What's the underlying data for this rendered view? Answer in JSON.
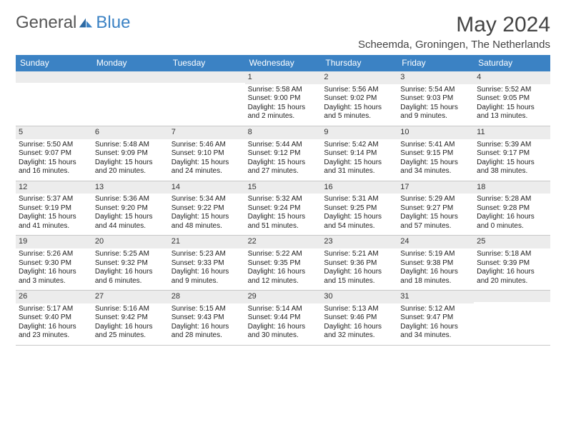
{
  "brand": {
    "part1": "General",
    "part2": "Blue"
  },
  "title": "May 2024",
  "location": "Scheemda, Groningen, The Netherlands",
  "colors": {
    "header_bg": "#3b82c4",
    "header_text": "#ffffff",
    "daynum_bg": "#ececec",
    "border": "#c8c8c8",
    "text": "#333333",
    "brand_gray": "#555555",
    "brand_blue": "#3b82c4",
    "page_bg": "#ffffff"
  },
  "typography": {
    "body_fontsize": 10,
    "daynum_fontsize": 11,
    "dow_fontsize": 12,
    "title_fontsize": 30,
    "location_fontsize": 15
  },
  "dow": [
    "Sunday",
    "Monday",
    "Tuesday",
    "Wednesday",
    "Thursday",
    "Friday",
    "Saturday"
  ],
  "weeks": [
    [
      {
        "n": "",
        "sr": "",
        "ss": "",
        "dl": ""
      },
      {
        "n": "",
        "sr": "",
        "ss": "",
        "dl": ""
      },
      {
        "n": "",
        "sr": "",
        "ss": "",
        "dl": ""
      },
      {
        "n": "1",
        "sr": "Sunrise: 5:58 AM",
        "ss": "Sunset: 9:00 PM",
        "dl": "Daylight: 15 hours and 2 minutes."
      },
      {
        "n": "2",
        "sr": "Sunrise: 5:56 AM",
        "ss": "Sunset: 9:02 PM",
        "dl": "Daylight: 15 hours and 5 minutes."
      },
      {
        "n": "3",
        "sr": "Sunrise: 5:54 AM",
        "ss": "Sunset: 9:03 PM",
        "dl": "Daylight: 15 hours and 9 minutes."
      },
      {
        "n": "4",
        "sr": "Sunrise: 5:52 AM",
        "ss": "Sunset: 9:05 PM",
        "dl": "Daylight: 15 hours and 13 minutes."
      }
    ],
    [
      {
        "n": "5",
        "sr": "Sunrise: 5:50 AM",
        "ss": "Sunset: 9:07 PM",
        "dl": "Daylight: 15 hours and 16 minutes."
      },
      {
        "n": "6",
        "sr": "Sunrise: 5:48 AM",
        "ss": "Sunset: 9:09 PM",
        "dl": "Daylight: 15 hours and 20 minutes."
      },
      {
        "n": "7",
        "sr": "Sunrise: 5:46 AM",
        "ss": "Sunset: 9:10 PM",
        "dl": "Daylight: 15 hours and 24 minutes."
      },
      {
        "n": "8",
        "sr": "Sunrise: 5:44 AM",
        "ss": "Sunset: 9:12 PM",
        "dl": "Daylight: 15 hours and 27 minutes."
      },
      {
        "n": "9",
        "sr": "Sunrise: 5:42 AM",
        "ss": "Sunset: 9:14 PM",
        "dl": "Daylight: 15 hours and 31 minutes."
      },
      {
        "n": "10",
        "sr": "Sunrise: 5:41 AM",
        "ss": "Sunset: 9:15 PM",
        "dl": "Daylight: 15 hours and 34 minutes."
      },
      {
        "n": "11",
        "sr": "Sunrise: 5:39 AM",
        "ss": "Sunset: 9:17 PM",
        "dl": "Daylight: 15 hours and 38 minutes."
      }
    ],
    [
      {
        "n": "12",
        "sr": "Sunrise: 5:37 AM",
        "ss": "Sunset: 9:19 PM",
        "dl": "Daylight: 15 hours and 41 minutes."
      },
      {
        "n": "13",
        "sr": "Sunrise: 5:36 AM",
        "ss": "Sunset: 9:20 PM",
        "dl": "Daylight: 15 hours and 44 minutes."
      },
      {
        "n": "14",
        "sr": "Sunrise: 5:34 AM",
        "ss": "Sunset: 9:22 PM",
        "dl": "Daylight: 15 hours and 48 minutes."
      },
      {
        "n": "15",
        "sr": "Sunrise: 5:32 AM",
        "ss": "Sunset: 9:24 PM",
        "dl": "Daylight: 15 hours and 51 minutes."
      },
      {
        "n": "16",
        "sr": "Sunrise: 5:31 AM",
        "ss": "Sunset: 9:25 PM",
        "dl": "Daylight: 15 hours and 54 minutes."
      },
      {
        "n": "17",
        "sr": "Sunrise: 5:29 AM",
        "ss": "Sunset: 9:27 PM",
        "dl": "Daylight: 15 hours and 57 minutes."
      },
      {
        "n": "18",
        "sr": "Sunrise: 5:28 AM",
        "ss": "Sunset: 9:28 PM",
        "dl": "Daylight: 16 hours and 0 minutes."
      }
    ],
    [
      {
        "n": "19",
        "sr": "Sunrise: 5:26 AM",
        "ss": "Sunset: 9:30 PM",
        "dl": "Daylight: 16 hours and 3 minutes."
      },
      {
        "n": "20",
        "sr": "Sunrise: 5:25 AM",
        "ss": "Sunset: 9:32 PM",
        "dl": "Daylight: 16 hours and 6 minutes."
      },
      {
        "n": "21",
        "sr": "Sunrise: 5:23 AM",
        "ss": "Sunset: 9:33 PM",
        "dl": "Daylight: 16 hours and 9 minutes."
      },
      {
        "n": "22",
        "sr": "Sunrise: 5:22 AM",
        "ss": "Sunset: 9:35 PM",
        "dl": "Daylight: 16 hours and 12 minutes."
      },
      {
        "n": "23",
        "sr": "Sunrise: 5:21 AM",
        "ss": "Sunset: 9:36 PM",
        "dl": "Daylight: 16 hours and 15 minutes."
      },
      {
        "n": "24",
        "sr": "Sunrise: 5:19 AM",
        "ss": "Sunset: 9:38 PM",
        "dl": "Daylight: 16 hours and 18 minutes."
      },
      {
        "n": "25",
        "sr": "Sunrise: 5:18 AM",
        "ss": "Sunset: 9:39 PM",
        "dl": "Daylight: 16 hours and 20 minutes."
      }
    ],
    [
      {
        "n": "26",
        "sr": "Sunrise: 5:17 AM",
        "ss": "Sunset: 9:40 PM",
        "dl": "Daylight: 16 hours and 23 minutes."
      },
      {
        "n": "27",
        "sr": "Sunrise: 5:16 AM",
        "ss": "Sunset: 9:42 PM",
        "dl": "Daylight: 16 hours and 25 minutes."
      },
      {
        "n": "28",
        "sr": "Sunrise: 5:15 AM",
        "ss": "Sunset: 9:43 PM",
        "dl": "Daylight: 16 hours and 28 minutes."
      },
      {
        "n": "29",
        "sr": "Sunrise: 5:14 AM",
        "ss": "Sunset: 9:44 PM",
        "dl": "Daylight: 16 hours and 30 minutes."
      },
      {
        "n": "30",
        "sr": "Sunrise: 5:13 AM",
        "ss": "Sunset: 9:46 PM",
        "dl": "Daylight: 16 hours and 32 minutes."
      },
      {
        "n": "31",
        "sr": "Sunrise: 5:12 AM",
        "ss": "Sunset: 9:47 PM",
        "dl": "Daylight: 16 hours and 34 minutes."
      },
      {
        "n": "",
        "sr": "",
        "ss": "",
        "dl": ""
      }
    ]
  ]
}
